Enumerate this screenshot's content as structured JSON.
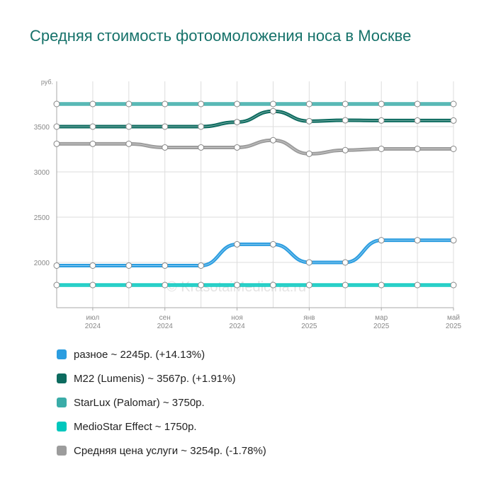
{
  "title": "Средняя стоимость фотоомоложения носа в Москве",
  "watermark": "© KrasotaiMedicina.ru",
  "chart_data": {
    "type": "line",
    "y_unit_label": "руб.",
    "ylim": [
      1500,
      4000
    ],
    "yticks": [
      2000,
      2500,
      3000,
      3500
    ],
    "grid": true,
    "x": [
      "2024-06",
      "2024-07",
      "2024-08",
      "2024-09",
      "2024-10",
      "2024-11",
      "2024-12",
      "2025-01",
      "2025-02",
      "2025-03",
      "2025-04",
      "2025-05"
    ],
    "x_tick_labels": [
      {
        "month": "июл",
        "year": "2024",
        "index": 1
      },
      {
        "month": "сен",
        "year": "2024",
        "index": 3
      },
      {
        "month": "ноя",
        "year": "2024",
        "index": 5
      },
      {
        "month": "янв",
        "year": "2025",
        "index": 7
      },
      {
        "month": "мар",
        "year": "2025",
        "index": 9
      },
      {
        "month": "май",
        "year": "2025",
        "index": 11
      }
    ],
    "series": [
      {
        "name": "StarLux (Palomar)",
        "color": "#3aaca8",
        "values": [
          3750,
          3750,
          3750,
          3750,
          3750,
          3750,
          3750,
          3750,
          3750,
          3750,
          3750,
          3750
        ]
      },
      {
        "name": "M22 (Lumenis)",
        "color": "#0d6b5f",
        "values": [
          3500,
          3500,
          3500,
          3500,
          3500,
          3550,
          3670,
          3560,
          3570,
          3567,
          3567,
          3567
        ]
      },
      {
        "name": "Средняя цена услуги",
        "color": "#9c9c9c",
        "values": [
          3310,
          3310,
          3310,
          3270,
          3270,
          3270,
          3350,
          3200,
          3240,
          3254,
          3254,
          3254
        ]
      },
      {
        "name": "разное",
        "color": "#2b9de0",
        "values": [
          1965,
          1965,
          1965,
          1965,
          1965,
          2200,
          2200,
          2000,
          2000,
          2245,
          2245,
          2245
        ]
      },
      {
        "name": "MedioStar Effect",
        "color": "#00c7bd",
        "values": [
          1750,
          1750,
          1750,
          1750,
          1750,
          1750,
          1750,
          1750,
          1750,
          1750,
          1750,
          1750
        ]
      }
    ]
  },
  "legend": [
    {
      "label": "разное ~ 2245р. (+14.13%)",
      "color": "#2b9de0"
    },
    {
      "label": "M22 (Lumenis) ~ 3567р. (+1.91%)",
      "color": "#0d6b5f"
    },
    {
      "label": "StarLux (Palomar) ~ 3750р.",
      "color": "#3aaca8"
    },
    {
      "label": "MedioStar Effect ~ 1750р.",
      "color": "#00c7bd"
    },
    {
      "label": "Средняя цена услуги ~ 3254р. (-1.78%)",
      "color": "#9c9c9c"
    }
  ]
}
